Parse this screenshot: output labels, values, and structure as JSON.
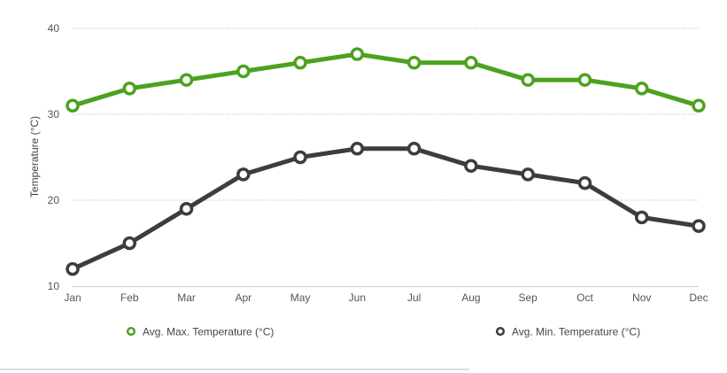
{
  "chart_data": {
    "type": "line",
    "title": "",
    "xlabel": "",
    "ylabel": "Temperature (°C)",
    "ylim": [
      10,
      40
    ],
    "yticks": [
      10,
      20,
      30,
      40
    ],
    "grid": true,
    "legend_position": "bottom",
    "categories": [
      "Jan",
      "Feb",
      "Mar",
      "Apr",
      "May",
      "Jun",
      "Jul",
      "Aug",
      "Sep",
      "Oct",
      "Nov",
      "Dec"
    ],
    "series": [
      {
        "name": "Avg. Max. Temperature (°C)",
        "color": "#4ca21f",
        "values": [
          31,
          33,
          34,
          35,
          36,
          37,
          36,
          36,
          34,
          34,
          33,
          31
        ]
      },
      {
        "name": "Avg. Min. Temperature (°C)",
        "color": "#3d3d3d",
        "values": [
          12,
          15,
          19,
          23,
          25,
          26,
          26,
          24,
          23,
          22,
          18,
          17
        ]
      }
    ]
  }
}
